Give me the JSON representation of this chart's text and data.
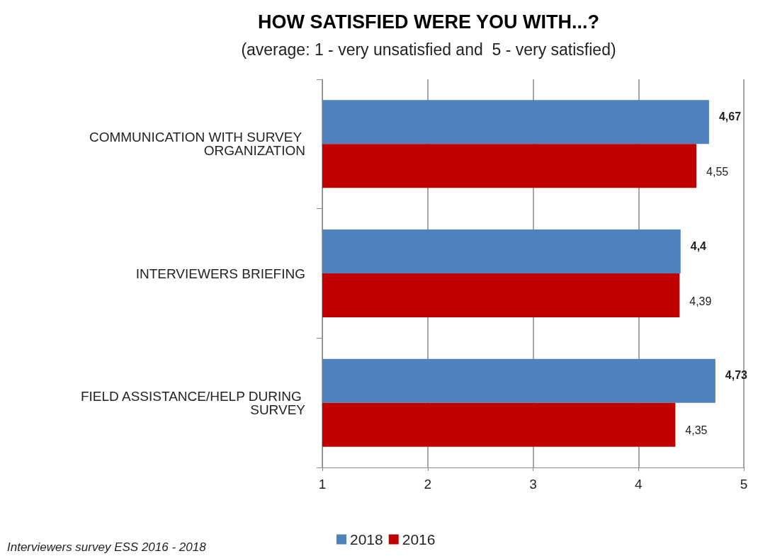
{
  "chart_data": {
    "type": "bar",
    "orientation": "horizontal",
    "title": "HOW SATISFIED WERE YOU WITH...?",
    "subtitle": "(average: 1 - very unsatisfied and  5 - very satisfied)",
    "categories": [
      "COMMUNICATION WITH SURVEY ORGANIZATION",
      "INTERVIEWERS BRIEFING",
      "FIELD ASSISTANCE/HELP DURING SURVEY"
    ],
    "series": [
      {
        "name": "2018",
        "color": "#4f81bd",
        "values": [
          4.67,
          4.4,
          4.73
        ],
        "value_labels": [
          "4,67",
          "4,4",
          "4,73"
        ]
      },
      {
        "name": "2016",
        "color": "#c00000",
        "values": [
          4.55,
          4.39,
          4.35
        ],
        "value_labels": [
          "4,55",
          "4,39",
          "4,35"
        ]
      }
    ],
    "xlim": [
      1,
      5
    ],
    "xticks": [
      1,
      2,
      3,
      4,
      5
    ],
    "grid": "x",
    "legend": "bottom",
    "annotations": [
      "Interviewers survey ESS 2016 - 2018"
    ]
  }
}
